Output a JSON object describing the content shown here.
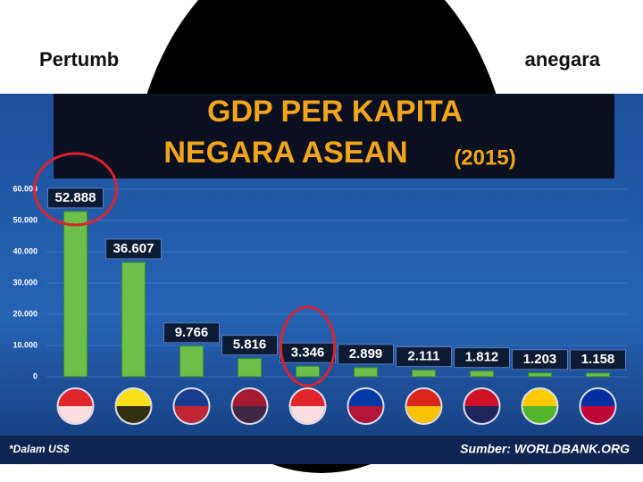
{
  "slide": {
    "title_left": "Pertumb",
    "title_right": "anegara"
  },
  "chart_data": {
    "type": "bar",
    "title": "GDP PER KAPITA",
    "subtitle": "NEGARA ASEAN",
    "year": "(2015)",
    "categories": [
      null,
      null,
      null,
      null,
      null,
      null,
      null,
      null,
      null,
      null
    ],
    "values": [
      52888,
      36607,
      9766,
      5816,
      3346,
      2899,
      2111,
      1812,
      1203,
      1158
    ],
    "value_labels": [
      "52.888",
      "36.607",
      "9.766",
      "5.816",
      "3.346",
      "2.899",
      "2.111",
      "1.812",
      "1.203",
      "1.158"
    ],
    "color": "#6cc04a",
    "ylim": [
      0,
      60000
    ],
    "yticks": [
      0,
      {
        "value": 10000,
        "label": "10.000"
      },
      {
        "value": 20000,
        "label": "20.000"
      },
      {
        "value": 30000,
        "label": "30.000"
      },
      {
        "value": 40000,
        "label": "40.000"
      },
      {
        "value": 50000,
        "label": "50.000"
      },
      {
        "value": 60000,
        "label": "60.000"
      }
    ],
    "grid": true,
    "note": "*Dalam US$",
    "source": "Sumber: WORLDBANK.ORG"
  }
}
